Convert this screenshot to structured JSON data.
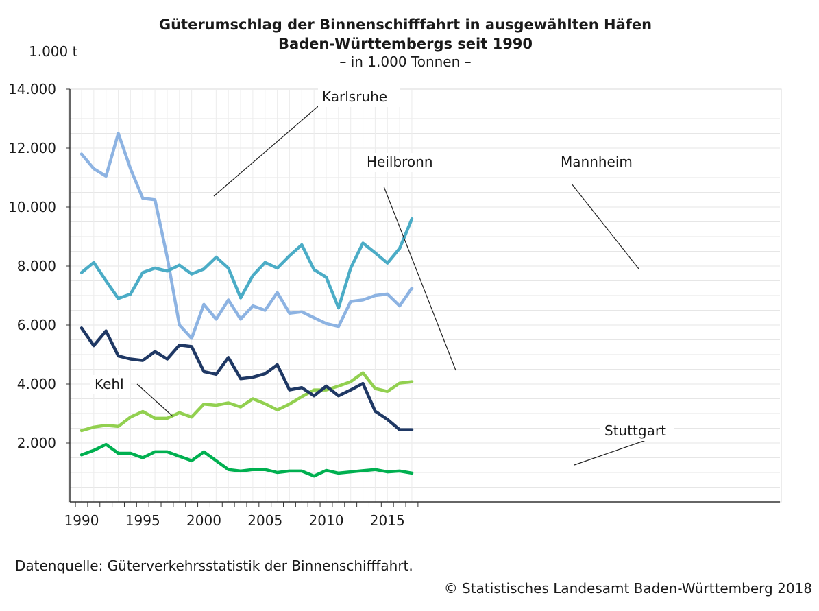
{
  "title_line1": "Güterumschlag der Binnenschifffahrt in ausgewählten Häfen",
  "title_line2": "Baden-Württembergs seit 1990",
  "subtitle": "– in 1.000 Tonnen –",
  "source": "Datenquelle: Güterverkehrsstatistik der Binnenschifffahrt.",
  "copyright": "© Statistisches Landesamt Baden-Württemberg 2018",
  "chart_data": {
    "type": "line",
    "ylabel": "1.000 t",
    "ylim": [
      0,
      14000
    ],
    "xlim": [
      1990,
      2017
    ],
    "y_ticks": [
      "2.000",
      "4.000",
      "6.000",
      "8.000",
      "10.000",
      "12.000",
      "14.000"
    ],
    "x_ticks": [
      "1990",
      "1995",
      "2000",
      "2005",
      "2010",
      "2015"
    ],
    "grid": true,
    "x": [
      1990,
      1991,
      1992,
      1993,
      1994,
      1995,
      1996,
      1997,
      1998,
      1999,
      2000,
      2001,
      2002,
      2003,
      2004,
      2005,
      2006,
      2007,
      2008,
      2009,
      2010,
      2011,
      2012,
      2013,
      2014,
      2015,
      2016,
      2017
    ],
    "series": [
      {
        "name": "Karlsruhe",
        "color": "#8db3e2",
        "values": [
          11800,
          11300,
          11050,
          12500,
          11300,
          10300,
          10250,
          8300,
          6000,
          5550,
          6700,
          6200,
          6850,
          6200,
          6650,
          6500,
          7100,
          6400,
          6450,
          6250,
          6050,
          5950,
          6800,
          6850,
          7000,
          7050,
          6650,
          7250
        ]
      },
      {
        "name": "Mannheim",
        "color": "#4bacc6",
        "values": [
          7780,
          8120,
          7500,
          6900,
          7050,
          7780,
          7930,
          7830,
          8030,
          7730,
          7900,
          8300,
          7930,
          6920,
          7680,
          8120,
          7930,
          8350,
          8720,
          7880,
          7620,
          6580,
          7930,
          8780,
          8450,
          8100,
          8600,
          9600
        ]
      },
      {
        "name": "Heilbronn",
        "color": "#1f3864",
        "values": [
          5900,
          5300,
          5800,
          4950,
          4850,
          4800,
          5100,
          4850,
          5320,
          5270,
          4420,
          4330,
          4900,
          4180,
          4230,
          4350,
          4650,
          3800,
          3880,
          3600,
          3930,
          3600,
          3800,
          4020,
          3080,
          2800,
          2450,
          2450
        ]
      },
      {
        "name": "Kehl",
        "color": "#92d050",
        "values": [
          2420,
          2540,
          2600,
          2560,
          2880,
          3070,
          2840,
          2840,
          3030,
          2880,
          3320,
          3280,
          3360,
          3220,
          3500,
          3330,
          3120,
          3320,
          3570,
          3800,
          3800,
          3930,
          4080,
          4380,
          3850,
          3750,
          4030,
          4080
        ]
      },
      {
        "name": "Stuttgart",
        "color": "#00b050",
        "values": [
          1600,
          1750,
          1950,
          1650,
          1650,
          1500,
          1700,
          1700,
          1550,
          1400,
          1700,
          1400,
          1100,
          1050,
          1100,
          1100,
          1000,
          1050,
          1050,
          880,
          1070,
          980,
          1020,
          1060,
          1100,
          1020,
          1050,
          980
        ]
      }
    ],
    "annotations": [
      "Karlsruhe",
      "Heilbronn",
      "Mannheim",
      "Kehl",
      "Stuttgart"
    ]
  }
}
